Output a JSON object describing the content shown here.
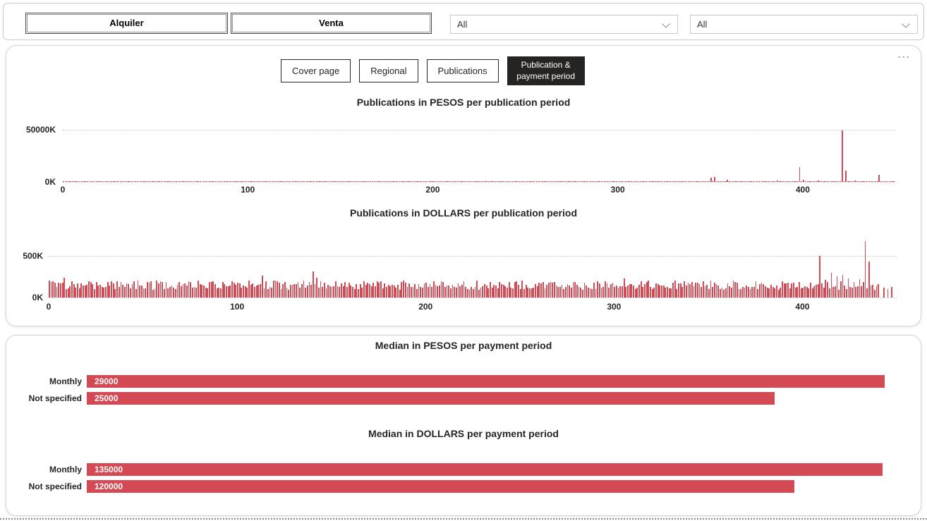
{
  "filter_bar": {
    "buttons": [
      {
        "label": "Alquiler"
      },
      {
        "label": "Venta"
      }
    ],
    "dropdowns": [
      {
        "value": "All"
      },
      {
        "value": "All"
      }
    ]
  },
  "page_nav": {
    "tabs": [
      {
        "label": "Cover page",
        "active": false
      },
      {
        "label": "Regional",
        "active": false
      },
      {
        "label": "Publications",
        "active": false
      },
      {
        "label": "Publication & payment period",
        "active": true
      }
    ],
    "more_options": "..."
  },
  "colors": {
    "bar_red": "#d34a55",
    "text_dark": "#252423",
    "grid_gray": "#c9c9c9",
    "active_tab_bg": "#252423"
  },
  "chart_data": [
    {
      "type": "bar",
      "title": "Publications in PESOS per publication period",
      "n": 450,
      "ylim": 50000,
      "unit": "K",
      "baseline": {
        "min": 150,
        "max": 700
      },
      "baseline_end": 450,
      "seed": 7,
      "y_ticks": [
        {
          "label": "50000K",
          "value": 50000
        },
        {
          "label": "0K",
          "value": 0
        }
      ],
      "x_ticks": [
        0,
        100,
        200,
        300,
        400
      ],
      "gridlines": [
        50000,
        0
      ],
      "spikes": [
        {
          "x": 350,
          "value": 4300
        },
        {
          "x": 352,
          "value": 4600
        },
        {
          "x": 359,
          "value": 1800
        },
        {
          "x": 372,
          "value": 900
        },
        {
          "x": 386,
          "value": 1100
        },
        {
          "x": 398,
          "value": 14500
        },
        {
          "x": 400,
          "value": 2200
        },
        {
          "x": 408,
          "value": 1500
        },
        {
          "x": 421,
          "value": 49500
        },
        {
          "x": 423,
          "value": 10500
        },
        {
          "x": 428,
          "value": 1600
        },
        {
          "x": 441,
          "value": 6500
        }
      ]
    },
    {
      "type": "bar",
      "title": "Publications in DOLLARS per publication period",
      "n": 450,
      "ylim": 680,
      "unit": "K",
      "baseline": {
        "min": 95,
        "max": 205
      },
      "baseline_end": 441,
      "seed": 3,
      "y_ticks": [
        {
          "label": "500K",
          "value": 500
        },
        {
          "label": "0K",
          "value": 0
        }
      ],
      "x_ticks": [
        0,
        100,
        200,
        300,
        400
      ],
      "gridlines": [
        500,
        0
      ],
      "spikes": [
        {
          "x": 8,
          "value": 240
        },
        {
          "x": 113,
          "value": 265
        },
        {
          "x": 140,
          "value": 315
        },
        {
          "x": 142,
          "value": 235
        },
        {
          "x": 305,
          "value": 230
        },
        {
          "x": 409,
          "value": 500
        },
        {
          "x": 412,
          "value": 210
        },
        {
          "x": 415,
          "value": 300
        },
        {
          "x": 418,
          "value": 255
        },
        {
          "x": 421,
          "value": 270
        },
        {
          "x": 424,
          "value": 230
        },
        {
          "x": 427,
          "value": 190
        },
        {
          "x": 430,
          "value": 225
        },
        {
          "x": 433,
          "value": 680
        },
        {
          "x": 435,
          "value": 430
        },
        {
          "x": 438,
          "value": 95
        },
        {
          "x": 443,
          "value": 120
        },
        {
          "x": 445,
          "value": 100
        },
        {
          "x": 447,
          "value": 130
        }
      ]
    },
    {
      "type": "bar",
      "orientation": "horizontal",
      "title": "Median in PESOS per payment period",
      "categories": [
        "Monthly",
        "Not specified"
      ],
      "values": [
        29000,
        25000
      ],
      "xmax": 30000
    },
    {
      "type": "bar",
      "orientation": "horizontal",
      "title": "Median in DOLLARS per payment period",
      "categories": [
        "Monthly",
        "Not specified"
      ],
      "values": [
        135000,
        120000
      ],
      "xmax": 140000
    }
  ]
}
